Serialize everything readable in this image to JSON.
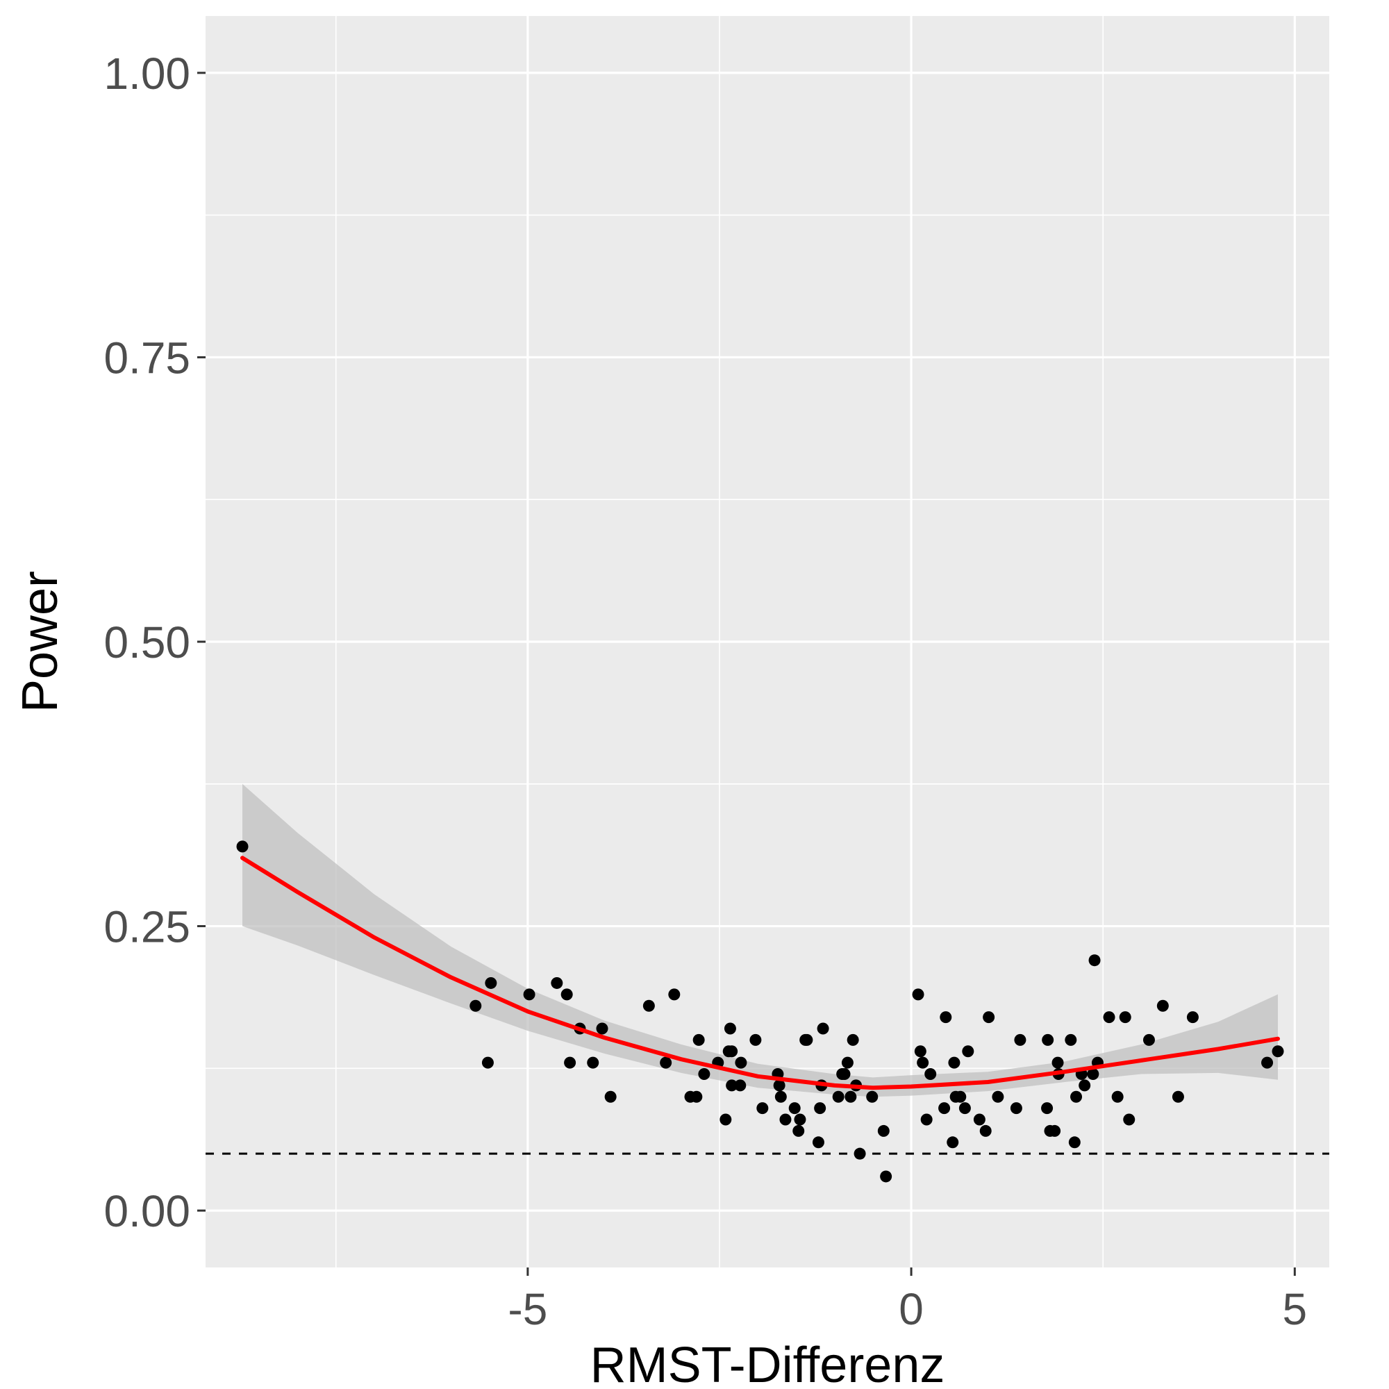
{
  "chart_data": {
    "type": "scatter",
    "xlabel": "RMST-Differenz",
    "ylabel": "Power",
    "xlim": [
      -9.2,
      5.45
    ],
    "ylim": [
      -0.05,
      1.05
    ],
    "x_ticks": [
      -5,
      0,
      5
    ],
    "x_tick_labels": [
      "-5",
      "0",
      "5"
    ],
    "y_ticks": [
      0,
      0.25,
      0.5,
      0.75,
      1
    ],
    "y_tick_labels": [
      "0.00",
      "0.25",
      "0.50",
      "0.75",
      "1.00"
    ],
    "x_minor_grid": [
      -7.5,
      -2.5,
      2.5
    ],
    "y_minor_grid": [
      0.125,
      0.375,
      0.625,
      0.875
    ],
    "grid": true,
    "legend": "none",
    "reference_line": {
      "y": 0.05,
      "style": "dashed",
      "color": "#000000"
    },
    "colors": {
      "panel_bg": "#ebebeb",
      "grid": "#ffffff",
      "points": "#000000",
      "smooth_line": "#ff0000",
      "confidence_band": "#bebebe"
    },
    "points": [
      [
        -8.72,
        0.32
      ],
      [
        -5.68,
        0.18
      ],
      [
        -5.48,
        0.2
      ],
      [
        -5.52,
        0.13
      ],
      [
        -4.98,
        0.19
      ],
      [
        -4.62,
        0.2
      ],
      [
        -4.49,
        0.19
      ],
      [
        -4.45,
        0.13
      ],
      [
        -4.32,
        0.16
      ],
      [
        -4.15,
        0.13
      ],
      [
        -4.03,
        0.16
      ],
      [
        -3.92,
        0.1
      ],
      [
        -3.42,
        0.18
      ],
      [
        -3.2,
        0.13
      ],
      [
        -3.09,
        0.19
      ],
      [
        -2.88,
        0.1
      ],
      [
        -2.8,
        0.1
      ],
      [
        -2.77,
        0.15
      ],
      [
        -2.7,
        0.12
      ],
      [
        -2.52,
        0.13
      ],
      [
        -2.42,
        0.08
      ],
      [
        -2.38,
        0.14
      ],
      [
        -2.36,
        0.16
      ],
      [
        -2.34,
        0.14
      ],
      [
        -2.34,
        0.11
      ],
      [
        -2.23,
        0.11
      ],
      [
        -2.22,
        0.13
      ],
      [
        -2.03,
        0.15
      ],
      [
        -1.94,
        0.09
      ],
      [
        -1.74,
        0.12
      ],
      [
        -1.72,
        0.11
      ],
      [
        -1.7,
        0.1
      ],
      [
        -1.64,
        0.08
      ],
      [
        -1.52,
        0.09
      ],
      [
        -1.47,
        0.07
      ],
      [
        -1.45,
        0.08
      ],
      [
        -1.38,
        0.15
      ],
      [
        -1.36,
        0.15
      ],
      [
        -1.21,
        0.06
      ],
      [
        -1.19,
        0.09
      ],
      [
        -1.17,
        0.11
      ],
      [
        -1.15,
        0.16
      ],
      [
        -0.95,
        0.1
      ],
      [
        -0.9,
        0.12
      ],
      [
        -0.87,
        0.12
      ],
      [
        -0.83,
        0.13
      ],
      [
        -0.79,
        0.1
      ],
      [
        -0.76,
        0.15
      ],
      [
        -0.72,
        0.11
      ],
      [
        -0.67,
        0.05
      ],
      [
        -0.51,
        0.1
      ],
      [
        -0.36,
        0.07
      ],
      [
        -0.33,
        0.03
      ],
      [
        0.09,
        0.19
      ],
      [
        0.12,
        0.14
      ],
      [
        0.15,
        0.13
      ],
      [
        0.2,
        0.08
      ],
      [
        0.25,
        0.12
      ],
      [
        0.43,
        0.09
      ],
      [
        0.45,
        0.17
      ],
      [
        0.54,
        0.06
      ],
      [
        0.56,
        0.13
      ],
      [
        0.58,
        0.1
      ],
      [
        0.64,
        0.1
      ],
      [
        0.7,
        0.09
      ],
      [
        0.74,
        0.14
      ],
      [
        0.89,
        0.08
      ],
      [
        0.97,
        0.07
      ],
      [
        1.01,
        0.17
      ],
      [
        1.13,
        0.1
      ],
      [
        1.37,
        0.09
      ],
      [
        1.42,
        0.15
      ],
      [
        1.77,
        0.09
      ],
      [
        1.78,
        0.15
      ],
      [
        1.81,
        0.07
      ],
      [
        1.87,
        0.07
      ],
      [
        1.91,
        0.13
      ],
      [
        1.92,
        0.12
      ],
      [
        2.08,
        0.15
      ],
      [
        2.13,
        0.06
      ],
      [
        2.15,
        0.1
      ],
      [
        2.22,
        0.12
      ],
      [
        2.26,
        0.11
      ],
      [
        2.37,
        0.12
      ],
      [
        2.39,
        0.22
      ],
      [
        2.43,
        0.13
      ],
      [
        2.58,
        0.17
      ],
      [
        2.69,
        0.1
      ],
      [
        2.79,
        0.17
      ],
      [
        2.84,
        0.08
      ],
      [
        3.1,
        0.15
      ],
      [
        3.28,
        0.18
      ],
      [
        3.48,
        0.1
      ],
      [
        3.67,
        0.17
      ],
      [
        4.64,
        0.13
      ],
      [
        4.78,
        0.14
      ]
    ],
    "smooth_fit": {
      "method": "loess",
      "x": [
        -8.72,
        -8.0,
        -7.0,
        -6.0,
        -5.0,
        -4.0,
        -3.0,
        -2.0,
        -1.0,
        -0.5,
        0.0,
        1.0,
        2.0,
        3.0,
        4.0,
        4.78
      ],
      "y": [
        0.31,
        0.28,
        0.24,
        0.205,
        0.175,
        0.152,
        0.133,
        0.118,
        0.11,
        0.108,
        0.109,
        0.113,
        0.122,
        0.132,
        0.142,
        0.151
      ],
      "ci_lower": [
        0.25,
        0.233,
        0.207,
        0.182,
        0.158,
        0.138,
        0.121,
        0.108,
        0.102,
        0.1,
        0.101,
        0.105,
        0.113,
        0.12,
        0.121,
        0.115
      ],
      "ci_upper": [
        0.375,
        0.332,
        0.278,
        0.232,
        0.195,
        0.167,
        0.146,
        0.129,
        0.12,
        0.117,
        0.119,
        0.122,
        0.131,
        0.146,
        0.166,
        0.19
      ]
    }
  }
}
